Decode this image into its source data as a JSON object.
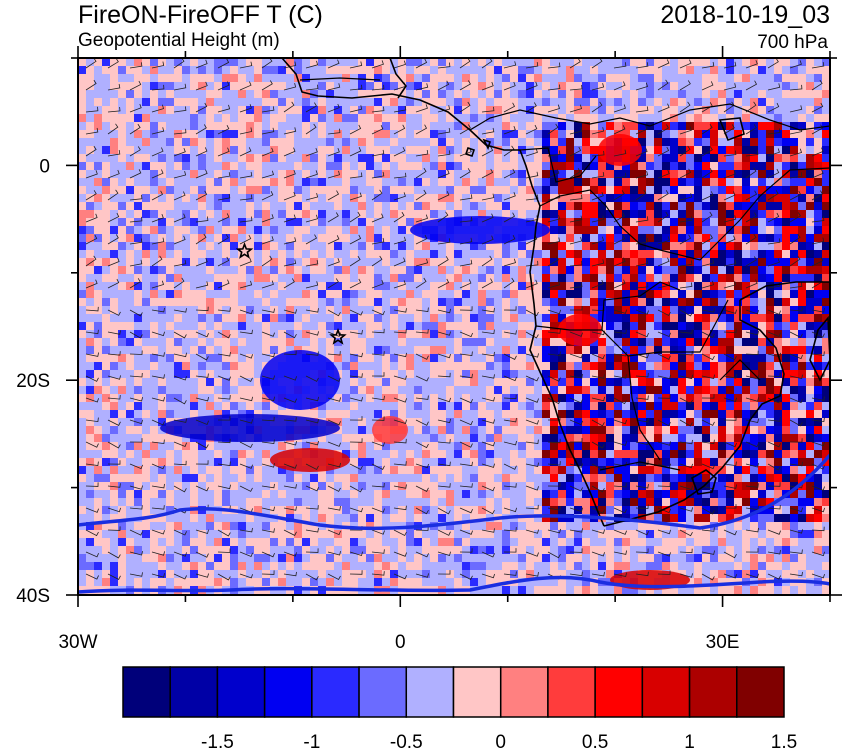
{
  "header": {
    "title": "FireON-FireOFF T (C)",
    "subtitle": "Geopotential Height (m)",
    "datetime": "2018-10-19_03",
    "level": "700 hPa"
  },
  "map": {
    "lon_range": [
      -30,
      40
    ],
    "lat_range": [
      -40,
      10
    ],
    "lon_ticks": [
      {
        "value": -30,
        "label": "30W"
      },
      {
        "value": 0,
        "label": "0"
      },
      {
        "value": 30,
        "label": "30E"
      }
    ],
    "lat_ticks": [
      {
        "value": 0,
        "label": "0"
      },
      {
        "value": -20,
        "label": "20S"
      },
      {
        "value": -40,
        "label": "40S"
      }
    ],
    "markers": [
      {
        "name": "star",
        "lon": -14.5,
        "lat": -8
      },
      {
        "name": "star",
        "lon": -5.8,
        "lat": -16
      }
    ]
  },
  "colorbar": {
    "colors": [
      "#00007a",
      "#0000a6",
      "#0000cc",
      "#0000f2",
      "#2a2aff",
      "#6b6bff",
      "#b0b0ff",
      "#ffc6c6",
      "#ff8080",
      "#ff3c3c",
      "#ff0000",
      "#d80000",
      "#ac0000",
      "#800000"
    ],
    "labels": [
      "-1.5",
      "-1",
      "-0.5",
      "0",
      "0.5",
      "1",
      "1.5"
    ]
  }
}
